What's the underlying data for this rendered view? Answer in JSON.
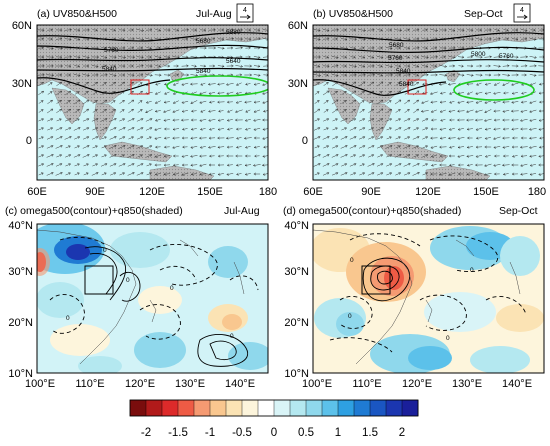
{
  "chart_data": [
    {
      "type": "heatmap",
      "panel": "a",
      "title_left": "(a) UV850&H500",
      "title_right": "Jul-Aug",
      "x_ticks": [
        "60E",
        "90E",
        "120E",
        "150E",
        "180"
      ],
      "y_ticks": [
        "60N",
        "30N",
        "0"
      ],
      "xlim": [
        60,
        180
      ],
      "ylim": [
        -15,
        60
      ],
      "contour_labels": [
        "5680",
        "5760",
        "5840",
        "5880",
        "5640",
        "5840"
      ],
      "reference_vector": "4"
    },
    {
      "type": "heatmap",
      "panel": "b",
      "title_left": "(b) UV850&H500",
      "title_right": "Sep-Oct",
      "x_ticks": [
        "60E",
        "90E",
        "120E",
        "150E",
        "180"
      ],
      "y_ticks": [
        "60N",
        "30N",
        "0"
      ],
      "xlim": [
        60,
        180
      ],
      "ylim": [
        -15,
        60
      ],
      "contour_labels": [
        "5680",
        "5760",
        "5840",
        "5800",
        "5840",
        "5760"
      ],
      "reference_vector": "4"
    },
    {
      "type": "heatmap",
      "panel": "c",
      "title_left": "(c) omega500(contour)+q850(shaded)",
      "title_right": "Jul-Aug",
      "x_ticks": [
        "100°E",
        "110°E",
        "120°E",
        "130°E",
        "140°E"
      ],
      "y_ticks": [
        "40°N",
        "30°N",
        "20°N",
        "10°N"
      ],
      "xlim": [
        100,
        145
      ],
      "ylim": [
        10,
        40
      ],
      "contour_labels": [
        "0",
        "0",
        "0",
        "0",
        "0"
      ]
    },
    {
      "type": "heatmap",
      "panel": "d",
      "title_left": "(d) omega500(contour)+q850(shaded)",
      "title_right": "Sep-Oct",
      "x_ticks": [
        "100°E",
        "110°E",
        "120°E",
        "130°E",
        "140°E"
      ],
      "y_ticks": [
        "40°N",
        "30°N",
        "20°N",
        "10°N"
      ],
      "xlim": [
        100,
        145
      ],
      "ylim": [
        10,
        40
      ],
      "contour_labels": [
        "0",
        "0",
        "0",
        "0"
      ]
    }
  ],
  "colorbar": {
    "labels": [
      "-2",
      "-1.5",
      "-1",
      "-0.5",
      "0",
      "0.5",
      "1",
      "1.5",
      "2"
    ],
    "colors": [
      "#7a0d0d",
      "#b11a1a",
      "#dd2a2a",
      "#ee5b45",
      "#f59a72",
      "#f9c78f",
      "#fbe3b4",
      "#fdf5dc",
      "#ffffff",
      "#d9f4f7",
      "#b4e8f0",
      "#8fd8ec",
      "#5cc1ea",
      "#2ea0e2",
      "#1f7bd3",
      "#1a56c2",
      "#1b36b0",
      "#1a1f9a"
    ]
  }
}
